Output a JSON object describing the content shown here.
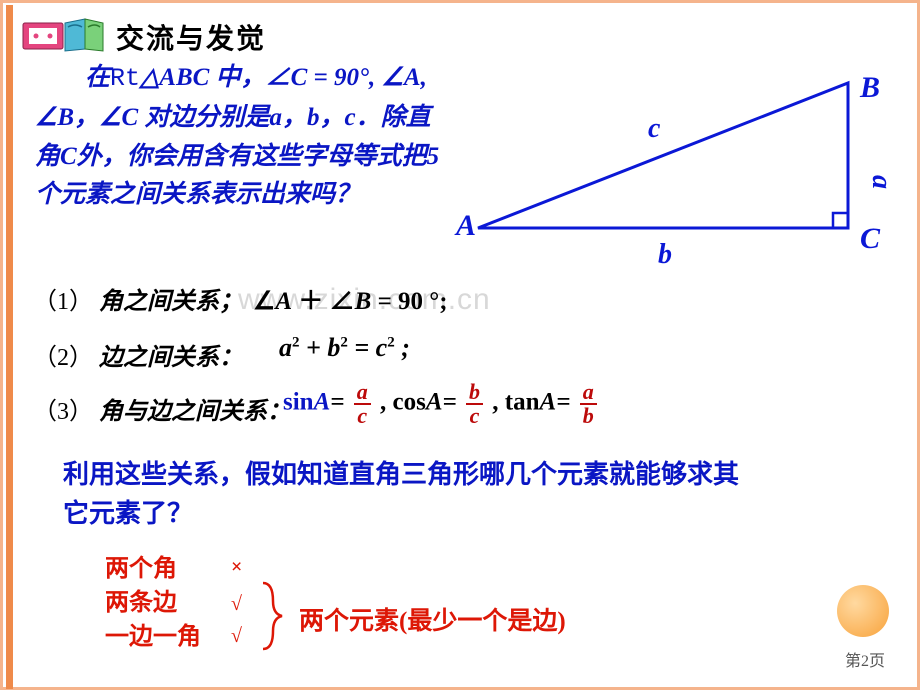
{
  "title": "交流与发觉",
  "para1_html": "　　在<span class='rt'>Rt</span>△<i>ABC</i> 中，∠<i>C</i> = 90°, ∠<i>A</i>, ∠<i>B</i>，∠<i>C</i> 对边分别是<i>a</i>，<i>b</i>，<i>c</i>．除直角C外，你会用含有这些字母等式把5个元素之间关系表示出来吗？",
  "watermark": "www.zixin.com.cn",
  "item1_label": "（1）",
  "item1_text": "角之间关系；",
  "rel1": "∠<i>A</i> ＋ ∠<i>B</i> = 90 °;",
  "item2_label": "（2）",
  "item2_text": "边之间关系：",
  "rel2": "a<sup>2</sup> + b<sup>2</sup> = c<sup>2</sup> ;",
  "item3_label": "（3）",
  "item3_text": "角与边之间关系：",
  "trig": {
    "sin": "sin",
    "cos": "cos",
    "tan": "tan",
    "A": "A",
    "eq": "=",
    "f1n": "a",
    "f1d": "c",
    "f2n": "b",
    "f2d": "c",
    "f3n": "a",
    "f3d": "b"
  },
  "para2": "利用这些关系，假如知道直角三角形哪几个元素就能够求其它元素了？",
  "ans1": "两个角",
  "ans2": "两条边",
  "ans3": "一边一角",
  "mark_x": "×",
  "mark_v": "√",
  "concl": "两个元素(最少一个是边)",
  "tri_labels": {
    "A": "A",
    "B": "B",
    "C": "C",
    "a": "a",
    "b": "b",
    "c": "c"
  },
  "colors": {
    "triangle": "#0b18d6",
    "text_blue": "#0a16c4",
    "text_red": "#dd1706",
    "frac_red": "#bc0a0a",
    "border": "#f5b48c",
    "accent": "#ef8a4a"
  },
  "page": "第2页"
}
